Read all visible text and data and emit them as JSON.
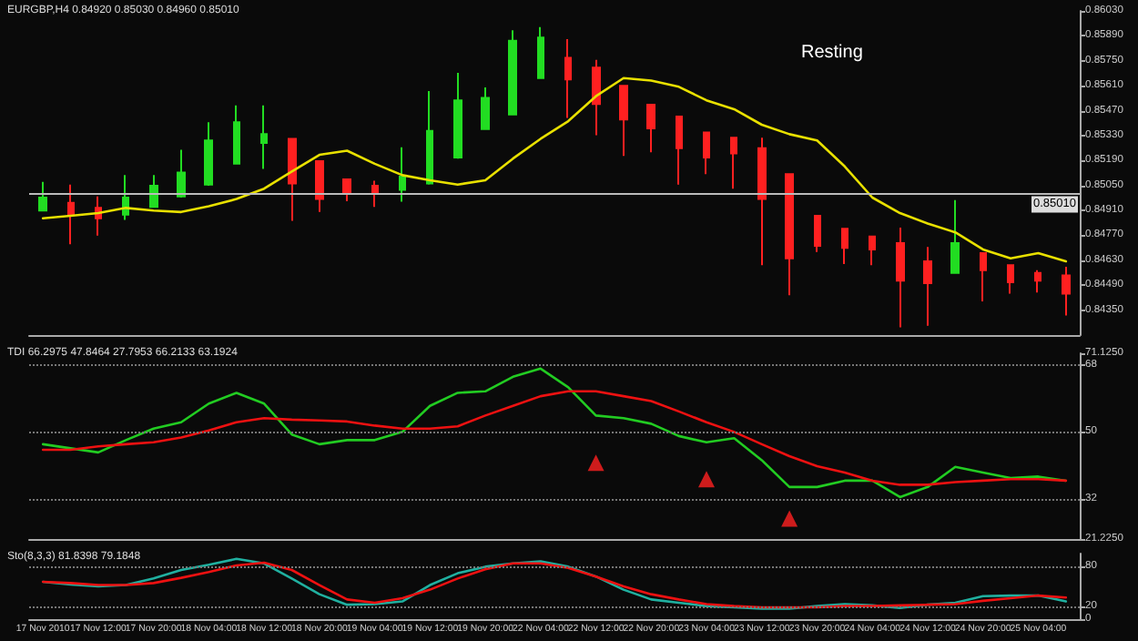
{
  "chart_data": [
    {
      "type": "candlestick",
      "title": "EURGBP,H4 0.84920 0.85030 0.84960 0.85010",
      "annotations": [
        "Resting"
      ],
      "categories": [
        null,
        null,
        null,
        null,
        null,
        null,
        null,
        null,
        null,
        null,
        null,
        null,
        null,
        null,
        null,
        null,
        null,
        null,
        null,
        null,
        null,
        null,
        null,
        null,
        null,
        null,
        null,
        null,
        null,
        null,
        null,
        null,
        null,
        null,
        null,
        null,
        null,
        null
      ],
      "ohlc": [
        [
          0.84909,
          0.8507,
          0.84909,
          0.84982
        ],
        [
          0.84953,
          0.85055,
          0.8472,
          0.84886
        ],
        [
          0.84924,
          0.84988,
          0.84769,
          0.84866
        ],
        [
          0.84886,
          0.85108,
          0.84857,
          0.84982
        ],
        [
          0.8493,
          0.85108,
          0.84924,
          0.85049
        ],
        [
          0.84988,
          0.85251,
          0.84982,
          0.85122
        ],
        [
          0.85055,
          0.85405,
          0.85049,
          0.85303
        ],
        [
          0.85172,
          0.85499,
          0.85172,
          0.85405
        ],
        [
          0.85289,
          0.85499,
          0.85143,
          0.85338
        ],
        [
          0.85312,
          0.85312,
          0.84851,
          0.85061
        ],
        [
          0.85187,
          0.85192,
          0.84901,
          0.84974
        ],
        [
          0.85084,
          0.85084,
          0.84962,
          0.85003
        ],
        [
          0.85049,
          0.85076,
          0.8493,
          0.85003
        ],
        [
          0.85026,
          0.85265,
          0.84959,
          0.85099
        ],
        [
          0.85061,
          0.8558,
          0.85055,
          0.85356
        ],
        [
          0.85207,
          0.85682,
          0.85201,
          0.85528
        ],
        [
          0.85367,
          0.85601,
          0.85362,
          0.85542
        ],
        [
          0.85449,
          0.85922,
          0.85449,
          0.85863
        ],
        [
          0.85653,
          0.85939,
          0.85653,
          0.85881
        ],
        [
          0.85767,
          0.85872,
          0.85429,
          0.85645
        ],
        [
          0.85712,
          0.85755,
          0.85332,
          0.85507
        ],
        [
          0.85609,
          0.85609,
          0.85216,
          0.8542
        ],
        [
          0.85504,
          0.85504,
          0.85236,
          0.8537
        ],
        [
          0.85437,
          0.85437,
          0.85055,
          0.85259
        ],
        [
          0.85347,
          0.85347,
          0.85114,
          0.85207
        ],
        [
          0.85318,
          0.85318,
          0.85032,
          0.8523
        ],
        [
          0.85259,
          0.85318,
          0.84603,
          0.84974
        ],
        [
          0.85114,
          0.85114,
          0.84434,
          0.84641
        ],
        [
          0.8488,
          0.8488,
          0.84676,
          0.84711
        ],
        [
          0.84807,
          0.84807,
          0.84609,
          0.84699
        ],
        [
          0.84763,
          0.84763,
          0.84603,
          0.84691
        ],
        [
          0.84726,
          0.84813,
          0.84253,
          0.84516
        ],
        [
          0.84624,
          0.84705,
          0.84262,
          0.84501
        ],
        [
          0.84559,
          0.84968,
          0.84554,
          0.84726
        ],
        [
          0.8467,
          0.8467,
          0.84399,
          0.84574
        ],
        [
          0.84603,
          0.84603,
          0.84443,
          0.84507
        ],
        [
          0.84559,
          0.84574,
          0.84449,
          0.84516
        ],
        [
          0.84545,
          0.84594,
          0.8432,
          0.84443
        ]
      ],
      "colors": [
        "#22dd22",
        "#ff2020",
        "#ff2020",
        "#22dd22",
        "#22dd22",
        "#22dd22",
        "#22dd22",
        "#22dd22",
        "#22dd22",
        "#ff2020",
        "#ff2020",
        "#ff2020",
        "#ff2020",
        "#22dd22",
        "#22dd22",
        "#22dd22",
        "#22dd22",
        "#22dd22",
        "#22dd22",
        "#ff2020",
        "#ff2020",
        "#ff2020",
        "#ff2020",
        "#ff2020",
        "#ff2020",
        "#ff2020",
        "#ff2020",
        "#ff2020",
        "#ff2020",
        "#ff2020",
        "#ff2020",
        "#ff2020",
        "#ff2020",
        "#22dd22",
        "#ff2020",
        "#ff2020",
        "#ff2020",
        "#ff2020"
      ],
      "series": [
        {
          "type": "line",
          "color": "#e8e000",
          "values": [
            0.84866,
            0.8488,
            0.84895,
            0.84924,
            0.84909,
            0.84901,
            0.84933,
            0.84974,
            0.85032,
            0.85128,
            0.85222,
            0.85245,
            0.85172,
            0.85108,
            0.85079,
            0.85055,
            0.85079,
            0.85201,
            0.85312,
            0.85411,
            0.85551,
            0.85653,
            0.85639,
            0.85604,
            0.85528,
            0.85478,
            0.85391,
            0.85338,
            0.85303,
            0.85157,
            0.84982,
            0.84895,
            0.84836,
            0.84787,
            0.84691,
            0.84641,
            0.8467,
            0.84624
          ]
        }
      ],
      "ylim": [
        0.8421,
        0.8603
      ],
      "yticks": [
        {
          "value": 0.8603,
          "label": "0.86030"
        },
        {
          "value": 0.8589,
          "label": "0.85890"
        },
        {
          "value": 0.8575,
          "label": "0.85750"
        },
        {
          "value": 0.8561,
          "label": "0.85610"
        },
        {
          "value": 0.8547,
          "label": "0.85470"
        },
        {
          "value": 0.8533,
          "label": "0.85330"
        },
        {
          "value": 0.8519,
          "label": "0.85190"
        },
        {
          "value": 0.8505,
          "label": "0.85050"
        },
        {
          "value": 0.8491,
          "label": "0.84910"
        },
        {
          "value": 0.8477,
          "label": "0.84770"
        },
        {
          "value": 0.8463,
          "label": "0.84630"
        },
        {
          "value": 0.8449,
          "label": "0.84490"
        },
        {
          "value": 0.8435,
          "label": "0.84350"
        }
      ],
      "ref_lines": [
        {
          "axis": "y",
          "value": 0.8501,
          "label": "0.85010",
          "color": "#bbbbbb",
          "line_style": "solid"
        }
      ],
      "marker": "none",
      "line_style": "solid",
      "grid": false,
      "tick_labels": "y"
    },
    {
      "type": "line",
      "title": "TDI 66.2975 47.8464 27.7953 66.2133 63.1924",
      "categories": [
        null,
        null,
        null,
        null,
        null,
        null,
        null,
        null,
        null,
        null,
        null,
        null,
        null,
        null,
        null,
        null,
        null,
        null,
        null,
        null,
        null,
        null,
        null,
        null,
        null,
        null,
        null,
        null,
        null,
        null,
        null,
        null,
        null,
        null,
        null,
        null,
        null,
        null
      ],
      "series": [
        {
          "color": "#22cc22",
          "values": [
            46.7,
            45.6,
            44.5,
            47.8,
            50.9,
            52.6,
            57.6,
            60.5,
            57.6,
            49.3,
            46.7,
            47.8,
            47.8,
            50,
            57.0,
            60.5,
            60.9,
            64.8,
            67.0,
            62.0,
            54.4,
            53.7,
            52.2,
            48.9,
            47.2,
            48.3,
            42.4,
            35.2,
            35.2,
            36.9,
            36.9,
            32.5,
            35.2,
            40.6,
            39.1,
            37.6,
            38.0,
            36.9
          ]
        },
        {
          "color": "#ee1111",
          "values": [
            45.2,
            45.2,
            46.1,
            46.7,
            47.2,
            48.5,
            50.4,
            52.6,
            53.7,
            53.3,
            53.1,
            52.8,
            51.7,
            50.9,
            50.9,
            51.5,
            54.4,
            57.0,
            59.6,
            60.9,
            60.9,
            59.6,
            58.3,
            55.5,
            52.6,
            50,
            46.7,
            43.5,
            40.8,
            39.1,
            36.9,
            35.8,
            35.8,
            36.5,
            36.9,
            37.3,
            37.3,
            36.9
          ]
        },
        {
          "type": "scatter",
          "color": "#ff2020",
          "marker": "triangle",
          "values": [
            null,
            null,
            null,
            null,
            null,
            null,
            null,
            null,
            null,
            null,
            null,
            null,
            null,
            null,
            null,
            null,
            null,
            null,
            null,
            null,
            41.7,
            null,
            null,
            null,
            37.3,
            null,
            null,
            26.7,
            null,
            null,
            null,
            null,
            null,
            null,
            null,
            null,
            null,
            null
          ]
        }
      ],
      "ylim": [
        21.225,
        71.125
      ],
      "yticks": [
        {
          "value": 71.125,
          "label": "71.1250"
        },
        68,
        50,
        32,
        {
          "value": 21.225,
          "label": "21.2250"
        }
      ],
      "ref_lines": [
        {
          "axis": "y",
          "value": 68,
          "color": "#777777",
          "line_style": "dotted"
        },
        {
          "axis": "y",
          "value": 50,
          "color": "#777777",
          "line_style": "dotted"
        },
        {
          "axis": "y",
          "value": 32,
          "color": "#777777",
          "line_style": "dotted"
        }
      ],
      "marker": "none",
      "line_style": "solid",
      "grid": false,
      "tick_labels": "y"
    },
    {
      "type": "line",
      "title": "Sto(8,3,3) 81.8398 79.1848",
      "categories": [
        "17 Nov 2010",
        null,
        "17 Nov 12:00",
        null,
        "17 Nov 20:00",
        null,
        "18 Nov 04:00",
        null,
        "18 Nov 12:00",
        null,
        "18 Nov 20:00",
        null,
        "19 Nov 04:00",
        null,
        "19 Nov 12:00",
        null,
        "19 Nov 20:00",
        null,
        "22 Nov 04:00",
        null,
        "22 Nov 12:00",
        null,
        "22 Nov 20:00",
        null,
        "23 Nov 04:00",
        null,
        "23 Nov 12:00",
        null,
        "23 Nov 20:00",
        null,
        "24 Nov 04:00",
        null,
        "24 Nov 12:00",
        null,
        "24 Nov 20:00",
        null,
        "25 Nov 04:00",
        null
      ],
      "series": [
        {
          "color": "#20b0a0",
          "values": [
            57,
            53,
            50,
            52,
            62,
            75,
            83,
            92,
            85,
            62,
            38,
            22,
            23,
            27,
            52,
            70,
            80,
            85,
            88,
            80,
            65,
            45,
            30,
            25,
            20,
            18,
            16,
            16,
            20,
            23,
            21,
            17,
            22,
            25,
            35,
            36,
            36,
            27
          ]
        },
        {
          "color": "#ee1111",
          "values": [
            57,
            55,
            52,
            52,
            55,
            63,
            72,
            82,
            86,
            75,
            52,
            30,
            25,
            32,
            45,
            62,
            76,
            85,
            85,
            78,
            65,
            50,
            38,
            30,
            23,
            20,
            18,
            18,
            18,
            20,
            20,
            21,
            22,
            23,
            28,
            32,
            36,
            33
          ]
        }
      ],
      "ylim": [
        0,
        100
      ],
      "yticks": [
        80,
        20,
        0
      ],
      "ref_lines": [
        {
          "axis": "y",
          "value": 80,
          "color": "#777777",
          "line_style": "dotted"
        },
        {
          "axis": "y",
          "value": 20,
          "color": "#777777",
          "line_style": "dotted"
        }
      ],
      "marker": "none",
      "line_style": "solid",
      "grid": false
    }
  ]
}
